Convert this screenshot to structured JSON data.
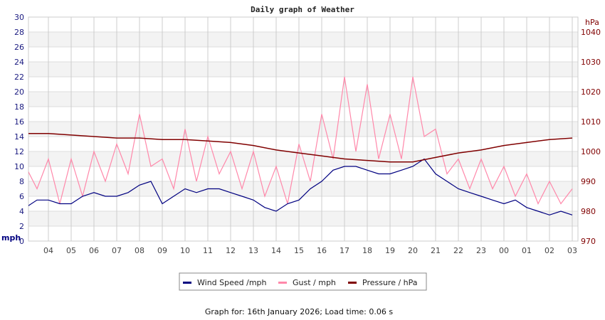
{
  "chart_data": {
    "type": "line",
    "title": "Daily graph of Weather",
    "ylabel": "mph",
    "y2label": "hPa",
    "ylim": [
      0,
      30
    ],
    "y2lim": [
      970,
      1045
    ],
    "yticks": [
      "0",
      "2",
      "4",
      "6",
      "8",
      "10",
      "12",
      "14",
      "16",
      "18",
      "20",
      "22",
      "24",
      "26",
      "28",
      "30"
    ],
    "y2ticks": [
      "970",
      "980",
      "990",
      "1000",
      "1010",
      "1020",
      "1030",
      "1040"
    ],
    "xticks": [
      "04",
      "05",
      "06",
      "07",
      "08",
      "09",
      "10",
      "11",
      "12",
      "13",
      "14",
      "15",
      "16",
      "17",
      "18",
      "19",
      "20",
      "21",
      "22",
      "23",
      "00",
      "01",
      "02",
      "03"
    ],
    "grid": true,
    "legend_position": "bottom",
    "x": [
      "03:00",
      "03:30",
      "04:00",
      "04:30",
      "05:00",
      "05:30",
      "06:00",
      "06:30",
      "07:00",
      "07:30",
      "08:00",
      "08:30",
      "09:00",
      "09:30",
      "10:00",
      "10:30",
      "11:00",
      "11:30",
      "12:00",
      "12:30",
      "13:00",
      "13:30",
      "14:00",
      "14:30",
      "15:00",
      "15:30",
      "16:00",
      "16:30",
      "17:00",
      "17:30",
      "18:00",
      "18:30",
      "19:00",
      "19:30",
      "20:00",
      "20:30",
      "21:00",
      "21:30",
      "22:00",
      "22:30",
      "23:00",
      "23:30",
      "00:00",
      "00:30",
      "01:00",
      "01:30",
      "02:00",
      "02:30",
      "03:00"
    ],
    "series": [
      {
        "name": "Wind Speed /mph",
        "color": "#000080",
        "axis": "left",
        "values": [
          4.5,
          5.5,
          5.5,
          5,
          5,
          6,
          6.5,
          6,
          6,
          6.5,
          7.5,
          8,
          5,
          6,
          7,
          6.5,
          7,
          7,
          6.5,
          6,
          5.5,
          4.5,
          4,
          5,
          5.5,
          7,
          8,
          9.5,
          10,
          10,
          9.5,
          9,
          9,
          9.5,
          10,
          11,
          9,
          8,
          7,
          6.5,
          6,
          5.5,
          5,
          5.5,
          4.5,
          4,
          3.5,
          4,
          3.5
        ]
      },
      {
        "name": "Gust / mph",
        "color": "#ff88aa",
        "axis": "left",
        "values": [
          10,
          7,
          11,
          5,
          11,
          6,
          12,
          8,
          13,
          9,
          17,
          10,
          11,
          7,
          15,
          8,
          14,
          9,
          12,
          7,
          12,
          6,
          10,
          5,
          13,
          8,
          17,
          11,
          22,
          12,
          21,
          11,
          17,
          11,
          22,
          14,
          15,
          9,
          11,
          7,
          11,
          7,
          10,
          6,
          9,
          5,
          8,
          5,
          7
        ]
      },
      {
        "name": "Pressure / hPa",
        "color": "#800000",
        "axis": "right",
        "x": [
          "03:00",
          "04:00",
          "05:00",
          "06:00",
          "07:00",
          "08:00",
          "09:00",
          "10:00",
          "11:00",
          "12:00",
          "13:00",
          "14:00",
          "15:00",
          "16:00",
          "17:00",
          "18:00",
          "19:00",
          "20:00",
          "21:00",
          "22:00",
          "23:00",
          "00:00",
          "01:00",
          "02:00",
          "03:00"
        ],
        "values": [
          1006,
          1006,
          1005.5,
          1005,
          1004.5,
          1004.5,
          1004,
          1004,
          1003.5,
          1003,
          1002,
          1000.5,
          999.5,
          998.5,
          997.5,
          997,
          996.5,
          996.5,
          998,
          999.5,
          1000.5,
          1002,
          1003,
          1004,
          1004.5
        ]
      }
    ]
  },
  "footer": "Graph for: 16th January 2026; Load time: 0.06 s"
}
